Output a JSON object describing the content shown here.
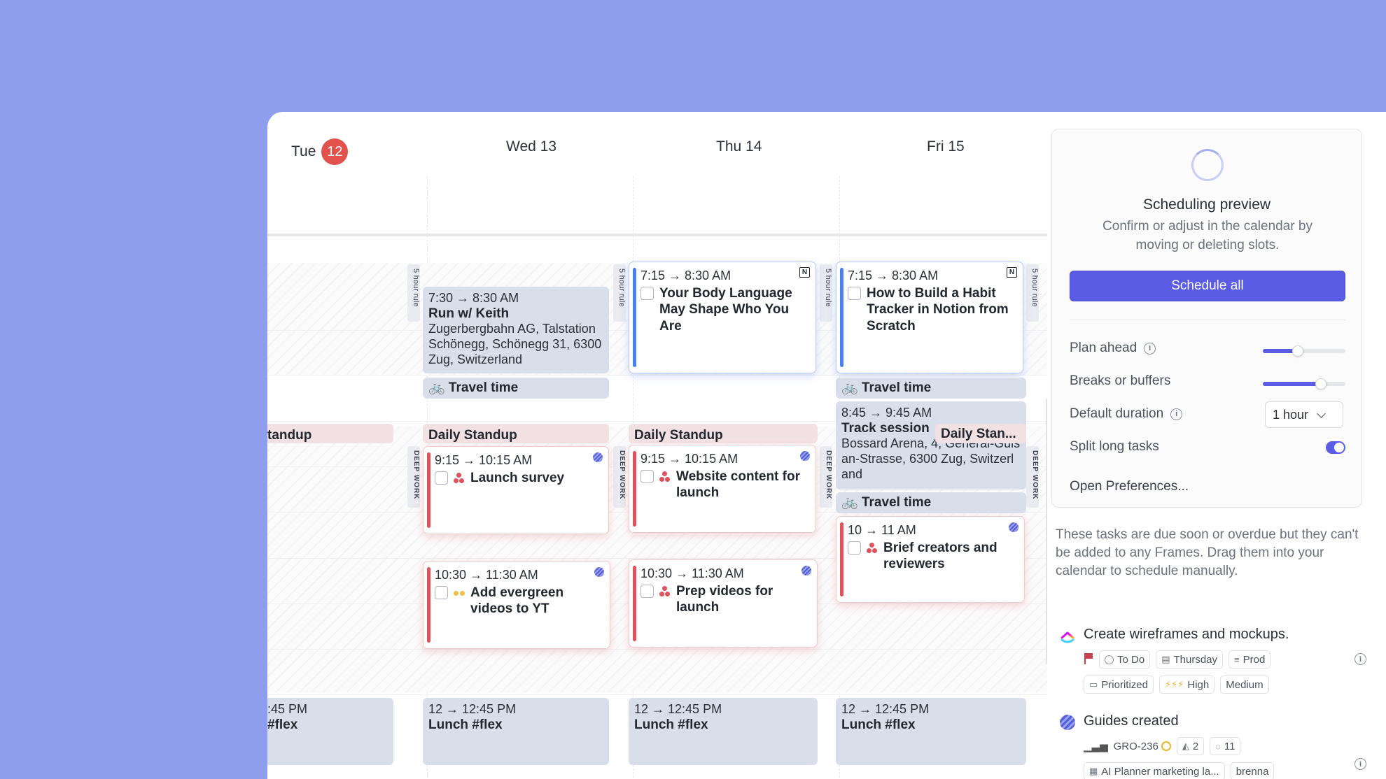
{
  "calendar": {
    "days": [
      {
        "label": "Tue",
        "badge": "12"
      },
      {
        "label": "Wed 13"
      },
      {
        "label": "Thu 14"
      },
      {
        "label": "Fri 15"
      }
    ],
    "tags": {
      "five_hour": "5 hour rule",
      "deep_work": "DEEP WORK"
    },
    "tue": {
      "standup": "tandup",
      "lunch_time": ":45 PM",
      "lunch_title": "#flex"
    },
    "wed": {
      "run": {
        "time": "7:30 → 8:30 AM",
        "title": "Run w/ Keith",
        "address": "Zugerbergbahn AG, Talstation Schönegg, Schönegg 31, 6300 Zug, Switzerland"
      },
      "travel": "🚲 Travel time",
      "standup": "Daily Standup",
      "task1": {
        "time": "9:15 → 10:15 AM",
        "title": "Launch survey"
      },
      "task2": {
        "time": "10:30 → 11:30 AM",
        "title": "Add evergreen videos to YT"
      },
      "lunch": {
        "time": "12 → 12:45 PM",
        "title": "Lunch #flex"
      }
    },
    "thu": {
      "task0": {
        "time": "7:15 → 8:30 AM",
        "title": "Your Body Language May Shape Who You Are"
      },
      "standup": "Daily Standup",
      "task1": {
        "time": "9:15 → 10:15 AM",
        "title": "Website content for launch"
      },
      "task2": {
        "time": "10:30 → 11:30 AM",
        "title": "Prep videos for launch"
      },
      "lunch": {
        "time": "12 → 12:45 PM",
        "title": "Lunch #flex"
      }
    },
    "fri": {
      "task0": {
        "time": "7:15 → 8:30 AM",
        "title": "How to Build a Habit Tracker in Notion from Scratch"
      },
      "travel1": "🚲 Travel time",
      "track": {
        "time": "8:45 → 9:45 AM",
        "title": "Track session",
        "address": "Bossard Arena, 4, General-Guisan-Strasse, 6300 Zug, Switzerland"
      },
      "standup": "Daily Stan...",
      "travel2": "🚲 Travel time",
      "task1": {
        "time": "10 → 11 AM",
        "title": "Brief creators and reviewers"
      },
      "lunch": {
        "time": "12 → 12:45 PM",
        "title": "Lunch #flex"
      }
    }
  },
  "preview": {
    "title": "Scheduling preview",
    "description": "Confirm or adjust in the calendar by moving or deleting slots.",
    "schedule_button": "Schedule all",
    "options": {
      "plan_ahead": {
        "label": "Plan ahead",
        "level": 0.42
      },
      "breaks": {
        "label": "Breaks or buffers",
        "level": 0.7
      },
      "default_duration": {
        "label": "Default duration",
        "value": "1 hour"
      },
      "split": {
        "label": "Split long tasks",
        "on": true
      },
      "open_prefs": "Open Preferences..."
    }
  },
  "due": {
    "description": "These tasks are due soon or overdue but they can't be added to any Frames. Drag them into your calendar to schedule manually.",
    "items": [
      {
        "title": "Create wireframes and mockups.",
        "chips1": [
          "To Do",
          "Thursday",
          "Prod"
        ],
        "chips2": [
          "Prioritized",
          "High",
          "Medium"
        ],
        "high_icon": "⚡⚡⚡"
      },
      {
        "title": "Guides created",
        "id": "GRO-236",
        "chips1": [
          "2",
          "11"
        ],
        "chips2": [
          "AI Planner marketing la...",
          "brenna"
        ]
      }
    ]
  }
}
